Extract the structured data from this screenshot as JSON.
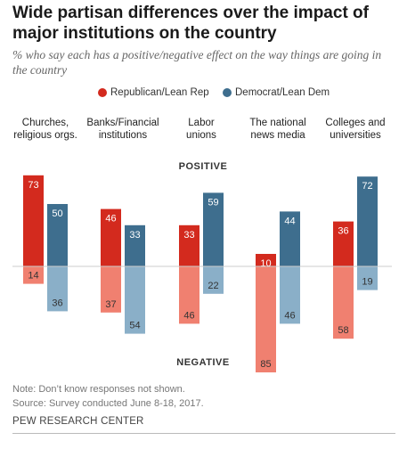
{
  "title": "Wide partisan differences over the impact of major institutions on the country",
  "subtitle": "% who say each has a positive/negative effect on the way things are going in the country",
  "note": "Note: Don’t know responses not shown.",
  "source": "Source: Survey conducted June 8-18, 2017.",
  "organization": "PEW RESEARCH CENTER",
  "colors": {
    "rep_positive": "#D32A1E",
    "rep_negative": "#F08070",
    "dem_positive": "#3E6E8E",
    "dem_negative": "#8AAFC8",
    "axis": "#cccccc"
  },
  "chart_data": {
    "type": "bar",
    "categories": [
      "Churches, religious orgs.",
      "Banks/Financial institutions",
      "Labor unions",
      "The national news media",
      "Colleges and universities"
    ],
    "category_lines": [
      [
        "Churches,",
        "religious orgs."
      ],
      [
        "Banks/Financial",
        "institutions"
      ],
      [
        "Labor",
        "unions"
      ],
      [
        "The national",
        "news media"
      ],
      [
        "Colleges and",
        "universities"
      ]
    ],
    "series": [
      {
        "name": "Republican/Lean Rep",
        "positive": [
          73,
          46,
          33,
          10,
          36
        ],
        "negative": [
          14,
          37,
          46,
          85,
          58
        ]
      },
      {
        "name": "Democrat/Lean Dem",
        "positive": [
          50,
          33,
          59,
          44,
          72
        ],
        "negative": [
          36,
          54,
          22,
          46,
          19
        ]
      }
    ],
    "positive_label": "POSITIVE",
    "negative_label": "NEGATIVE",
    "legend_position": "top-center"
  }
}
